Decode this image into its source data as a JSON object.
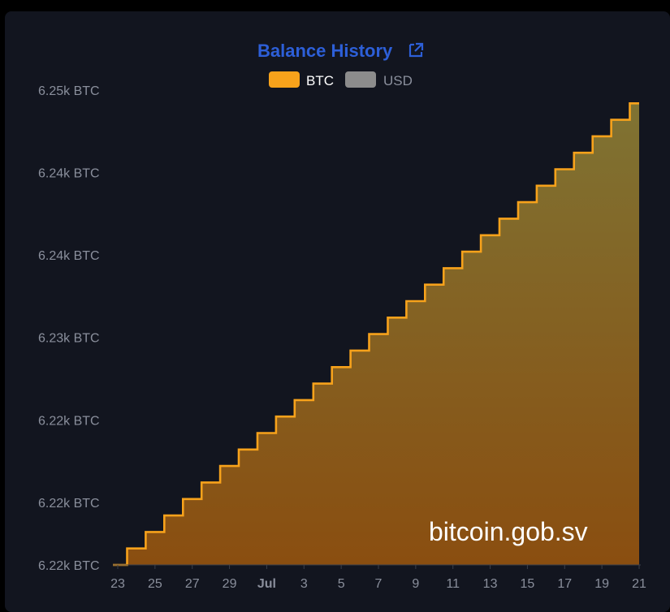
{
  "colors": {
    "background": "#12151f",
    "btc_line": "#f7a21b",
    "btc_fill_top": "#7f7333",
    "btc_fill_bottom": "#8a4e10",
    "usd_legend": "#8c8c8c",
    "title": "#2d5fd8",
    "axis_text": "#8a8f9c"
  },
  "icons": {
    "title_link": "external-link-icon"
  },
  "watermark": "bitcoin.gob.sv",
  "chart_data": {
    "type": "area",
    "step": true,
    "title": "Balance History",
    "legend": [
      {
        "label": "BTC",
        "active": true
      },
      {
        "label": "USD",
        "active": false
      }
    ],
    "legend_placement": "top-center",
    "y_ticks": [
      "6.25k BTC",
      "6.24k BTC",
      "6.24k BTC",
      "6.23k BTC",
      "6.22k BTC",
      "6.22k BTC",
      "6.22k BTC"
    ],
    "y_tick_values": [
      6248.2,
      6243.2,
      6238.2,
      6233.2,
      6228.2,
      6223.2,
      6219.4
    ],
    "ylim": [
      6219.4,
      6248.2
    ],
    "x_tick_labels": [
      "23",
      "25",
      "27",
      "29",
      "Jul",
      "3",
      "5",
      "7",
      "9",
      "11",
      "13",
      "15",
      "17",
      "19",
      "21"
    ],
    "x_tick_dates": [
      "06-23",
      "06-25",
      "06-27",
      "06-29",
      "07-01",
      "07-03",
      "07-05",
      "07-07",
      "07-09",
      "07-11",
      "07-13",
      "07-15",
      "07-17",
      "07-19",
      "07-21"
    ],
    "grid": false,
    "series": [
      {
        "name": "BTC",
        "x": [
          "06-23",
          "06-24",
          "06-25",
          "06-26",
          "06-27",
          "06-28",
          "06-29",
          "06-30",
          "07-01",
          "07-02",
          "07-03",
          "07-04",
          "07-05",
          "07-06",
          "07-07",
          "07-08",
          "07-09",
          "07-10",
          "07-11",
          "07-12",
          "07-13",
          "07-14",
          "07-15",
          "07-16",
          "07-17",
          "07-18",
          "07-19",
          "07-20",
          "07-21"
        ],
        "values": [
          6219.4,
          6220.4,
          6221.4,
          6222.4,
          6223.4,
          6224.4,
          6225.4,
          6226.4,
          6227.4,
          6228.4,
          6229.4,
          6230.4,
          6231.4,
          6232.4,
          6233.4,
          6234.4,
          6235.4,
          6236.4,
          6237.4,
          6238.4,
          6239.4,
          6240.4,
          6241.4,
          6242.4,
          6243.4,
          6244.4,
          6245.4,
          6246.4,
          6247.4
        ]
      }
    ]
  }
}
